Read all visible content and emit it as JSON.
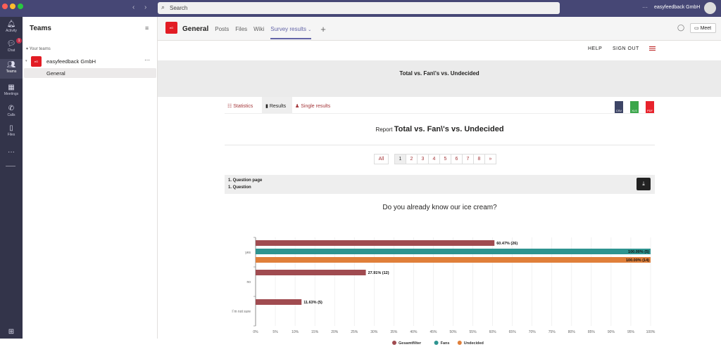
{
  "topbar": {
    "search_placeholder": "Search",
    "org": "easyfeedback GmbH"
  },
  "rail": [
    {
      "label": "Activity",
      "icon": "bell-icon"
    },
    {
      "label": "Chat",
      "icon": "chat-icon",
      "badge": "1"
    },
    {
      "label": "Teams",
      "icon": "teams-icon"
    },
    {
      "label": "Meetings",
      "icon": "calendar-icon"
    },
    {
      "label": "Calls",
      "icon": "phone-icon"
    },
    {
      "label": "Files",
      "icon": "file-icon"
    }
  ],
  "teams": {
    "title": "Teams",
    "section": "Your teams",
    "team": "easyfeedback GmbH",
    "team_logo": "eG",
    "channel": "General"
  },
  "channel": {
    "name": "General",
    "tabs": [
      "Posts",
      "Files",
      "Wiki",
      "Survey results"
    ],
    "meet": "Meet"
  },
  "app": {
    "help": "HELP",
    "signout": "SIGN OUT",
    "banner": "Total vs. Fan\\'s vs. Undecided",
    "tabs": [
      "Statistics",
      "Results",
      "Single results"
    ],
    "exports": [
      "CSV",
      "XLS",
      "PDF"
    ],
    "report_label": "Report",
    "report_title": "Total vs. Fan\\'s vs. Undecided",
    "pages": [
      "All",
      "1",
      "2",
      "3",
      "4",
      "5",
      "6",
      "7",
      "8",
      "»"
    ],
    "question_page": "1. Question page",
    "question": "1. Question"
  },
  "colors": {
    "accent": "#a4373a",
    "gesamt": "#a04b50",
    "fans": "#2e9490",
    "undecided": "#e07f3a",
    "teams_purple": "#464775"
  },
  "chart_data": {
    "type": "bar",
    "orientation": "horizontal",
    "title": "Do you already know our ice cream?",
    "categories": [
      "yes",
      "no",
      "I´m not sure"
    ],
    "series": [
      {
        "name": "Gesamtfilter",
        "values": [
          60.47,
          27.91,
          11.63
        ],
        "labels": [
          "60.47% (26)",
          "27.91% (12)",
          "11.63% (5)"
        ]
      },
      {
        "name": "Fans",
        "values": [
          100,
          null,
          null
        ],
        "labels": [
          "100.00% (5)",
          "",
          ""
        ]
      },
      {
        "name": "Undecided",
        "values": [
          100,
          null,
          null
        ],
        "labels": [
          "100.00% (14)",
          "",
          ""
        ]
      }
    ],
    "xlim": [
      0,
      100
    ],
    "xticks": [
      "0%",
      "5%",
      "10%",
      "15%",
      "20%",
      "25%",
      "30%",
      "35%",
      "40%",
      "45%",
      "50%",
      "55%",
      "60%",
      "65%",
      "70%",
      "75%",
      "80%",
      "85%",
      "90%",
      "95%",
      "100%"
    ],
    "grid": true,
    "legend": "bottom"
  }
}
